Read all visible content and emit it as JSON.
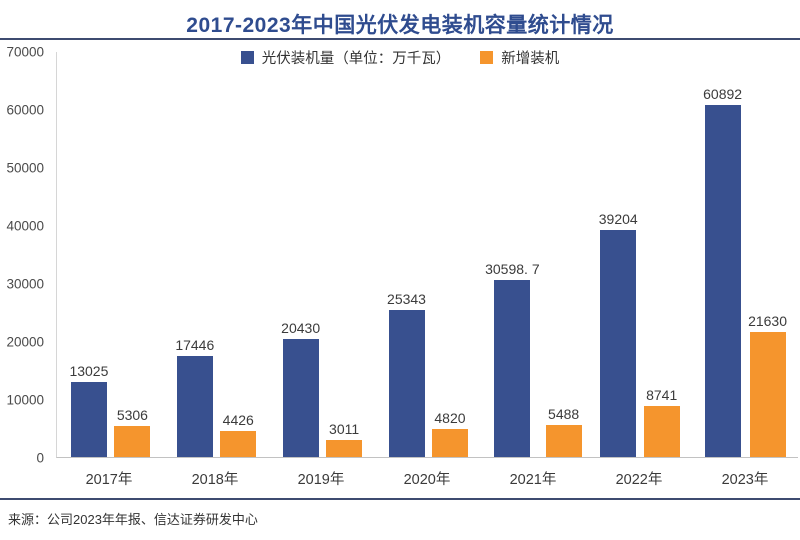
{
  "title": "2017-2023年中国光伏发电装机容量统计情况",
  "footer": {
    "source": "来源：公司2023年年报、信达证券研发中心"
  },
  "colors": {
    "title": "#2F4C8F",
    "rule": "#3E4B70",
    "series_blue": "#38508F",
    "series_orange": "#F5952D"
  },
  "chart_data": {
    "type": "bar",
    "title": "2017-2023年中国光伏发电装机容量统计情况",
    "categories": [
      "2017年",
      "2018年",
      "2019年",
      "2020年",
      "2021年",
      "2022年",
      "2023年"
    ],
    "series": [
      {
        "name": "光伏装机量（单位：万千瓦）",
        "color": "#38508F",
        "values": [
          13025,
          17446,
          20430,
          25343,
          30598.7,
          39204,
          60892
        ],
        "labels": [
          "13025",
          "17446",
          "20430",
          "25343",
          "30598. 7",
          "39204",
          "60892"
        ]
      },
      {
        "name": "新增装机",
        "color": "#F5952D",
        "values": [
          5306,
          4426,
          3011,
          4820,
          5488,
          8741,
          21630
        ],
        "labels": [
          "5306",
          "4426",
          "3011",
          "4820",
          "5488",
          "8741",
          "21630"
        ]
      }
    ],
    "ylim": [
      0,
      70000
    ],
    "yticks": [
      0,
      10000,
      20000,
      30000,
      40000,
      50000,
      60000,
      70000
    ],
    "grid": false,
    "legend_position": "top"
  }
}
